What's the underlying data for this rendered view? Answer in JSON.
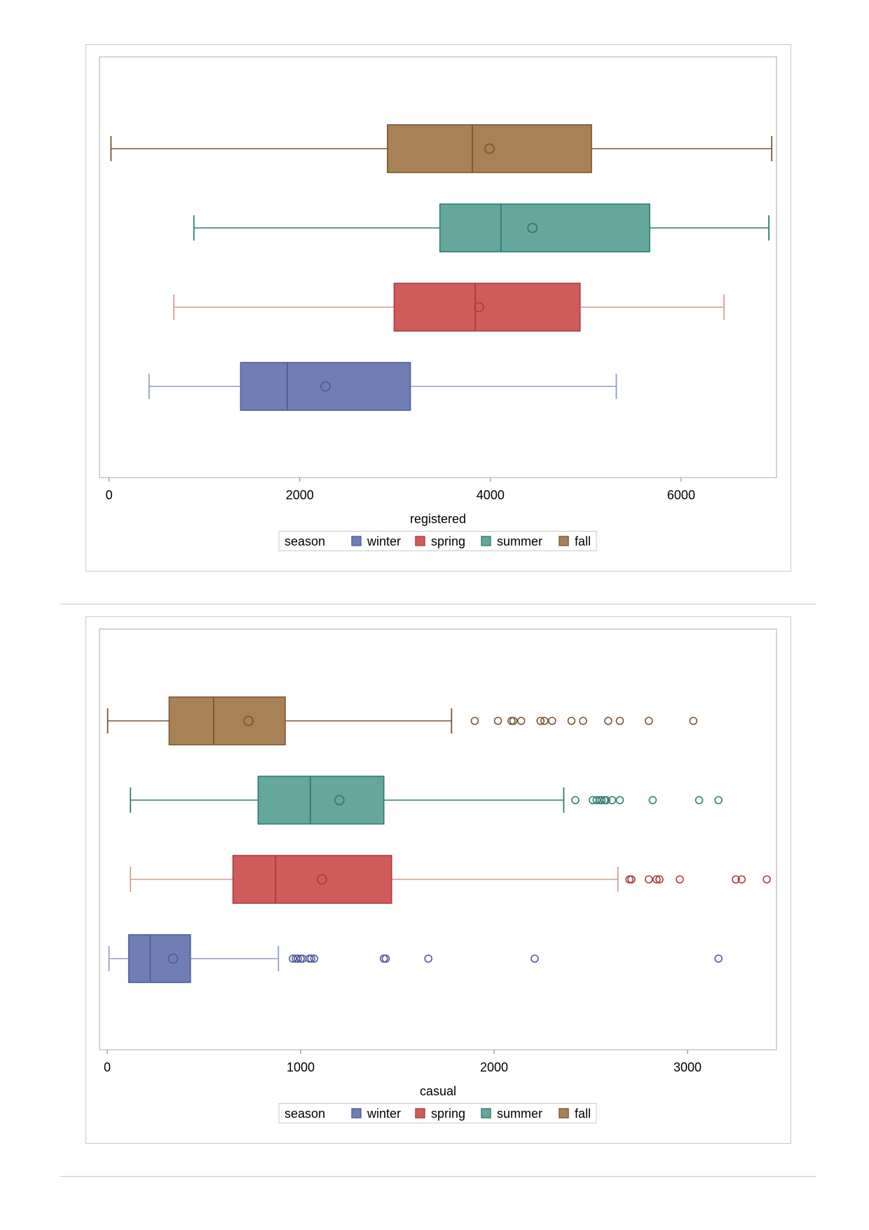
{
  "legend": {
    "title": "season",
    "items": [
      {
        "label": "winter",
        "fill": "#6f7eb5",
        "stroke": "#4e5c9c"
      },
      {
        "label": "spring",
        "fill": "#d05b5b",
        "stroke": "#a83e3e"
      },
      {
        "label": "summer",
        "fill": "#66a79d",
        "stroke": "#2c7d70"
      },
      {
        "label": "fall",
        "fill": "#a88256",
        "stroke": "#7a5530"
      }
    ]
  },
  "chart_data": [
    {
      "type": "box",
      "orientation": "horizontal",
      "xlabel": "registered",
      "xlim": [
        -100,
        7000
      ],
      "xticks": [
        0,
        2000,
        4000,
        6000
      ],
      "grid": false,
      "legend_position": "bottom",
      "series": [
        {
          "name": "winter",
          "whisker_low": 420,
          "q1": 1380,
          "median": 1870,
          "q3": 3160,
          "whisker_high": 5320,
          "mean": 2270,
          "outliers": [],
          "color": "#6f7eb5",
          "line": "#4e5c9c",
          "whisker_color": "#8f9cc8"
        },
        {
          "name": "spring",
          "whisker_low": 680,
          "q1": 2990,
          "median": 3840,
          "q3": 4940,
          "whisker_high": 6450,
          "mean": 3880,
          "outliers": [],
          "color": "#d05b5b",
          "line": "#a83e3e",
          "whisker_color": "#d99a92"
        },
        {
          "name": "summer",
          "whisker_low": 890,
          "q1": 3470,
          "median": 4110,
          "q3": 5670,
          "whisker_high": 6920,
          "mean": 4440,
          "outliers": [],
          "color": "#66a79d",
          "line": "#2c7d70",
          "whisker_color": "#2c7d70"
        },
        {
          "name": "fall",
          "whisker_low": 20,
          "q1": 2920,
          "median": 3810,
          "q3": 5060,
          "whisker_high": 6950,
          "mean": 3990,
          "outliers": [],
          "color": "#a88256",
          "line": "#7a5530",
          "whisker_color": "#7a5530"
        }
      ]
    },
    {
      "type": "box",
      "orientation": "horizontal",
      "xlabel": "casual",
      "xlim": [
        -40,
        3460
      ],
      "xticks": [
        0,
        1000,
        2000,
        3000
      ],
      "grid": false,
      "legend_position": "bottom",
      "series": [
        {
          "name": "winter",
          "whisker_low": 9,
          "q1": 111,
          "median": 222,
          "q3": 430,
          "whisker_high": 885,
          "mean": 340,
          "outliers": [
            960,
            975,
            985,
            1000,
            1010,
            1045,
            1055,
            1070,
            1430,
            1440,
            1660,
            2210,
            3160
          ],
          "color": "#6f7eb5",
          "line": "#4e5c9c",
          "whisker_color": "#8f9cc8"
        },
        {
          "name": "spring",
          "whisker_low": 120,
          "q1": 650,
          "median": 870,
          "q3": 1470,
          "whisker_high": 2640,
          "mean": 1110,
          "outliers": [
            2700,
            2710,
            2800,
            2840,
            2855,
            2960,
            3250,
            3280,
            3410
          ],
          "color": "#d05b5b",
          "line": "#a83e3e",
          "whisker_color": "#d99a92"
        },
        {
          "name": "summer",
          "whisker_low": 120,
          "q1": 780,
          "median": 1050,
          "q3": 1430,
          "whisker_high": 2360,
          "mean": 1200,
          "outliers": [
            2420,
            2510,
            2530,
            2545,
            2555,
            2570,
            2580,
            2610,
            2650,
            2820,
            3060,
            3160
          ],
          "color": "#66a79d",
          "line": "#2c7d70",
          "whisker_color": "#2c7d70"
        },
        {
          "name": "fall",
          "whisker_low": 2,
          "q1": 320,
          "median": 550,
          "q3": 920,
          "whisker_high": 1780,
          "mean": 730,
          "outliers": [
            1900,
            2020,
            2090,
            2100,
            2140,
            2240,
            2260,
            2300,
            2400,
            2460,
            2590,
            2650,
            2800,
            3030
          ],
          "color": "#a88256",
          "line": "#7a5530",
          "whisker_color": "#7a5530"
        }
      ]
    }
  ]
}
